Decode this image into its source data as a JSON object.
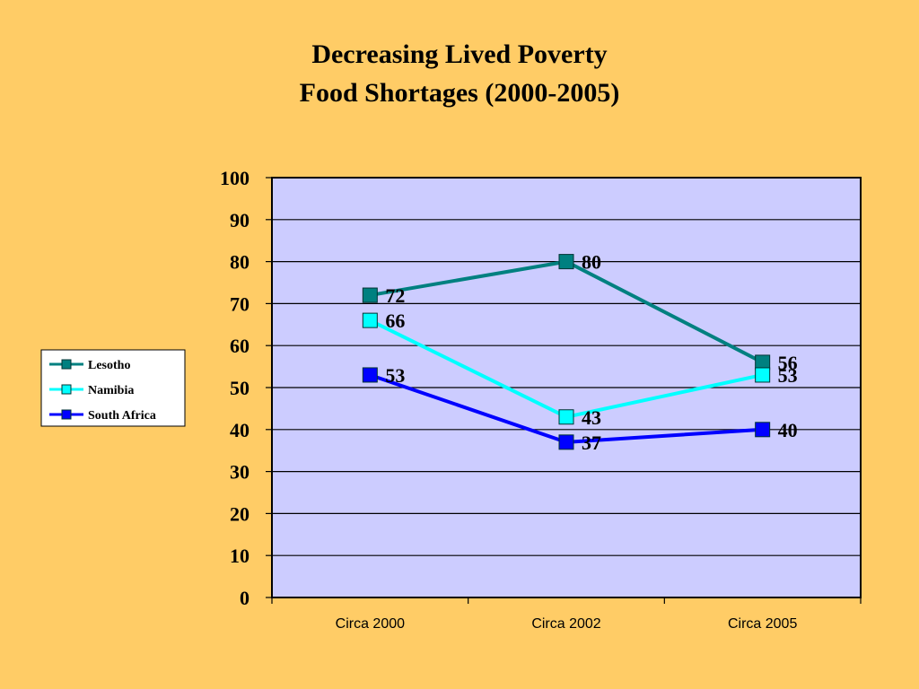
{
  "slide": {
    "background": "#FFCC66",
    "title_line1": "Decreasing Lived Poverty",
    "title_line2": "Food Shortages (2000-2005)"
  },
  "chart_data": {
    "type": "line",
    "title": "Decreasing Lived Poverty Food Shortages (2000-2005)",
    "categories": [
      "Circa 2000",
      "Circa 2002",
      "Circa 2005"
    ],
    "ylim": [
      0,
      100
    ],
    "yticks": [
      0,
      10,
      20,
      30,
      40,
      50,
      60,
      70,
      80,
      90,
      100
    ],
    "grid": true,
    "legend_position": "left",
    "plot_background": "#CCCCFF",
    "series": [
      {
        "name": "Lesotho",
        "values": [
          72,
          80,
          56
        ],
        "color": "#008080",
        "marker": "square"
      },
      {
        "name": "Namibia",
        "values": [
          66,
          43,
          53
        ],
        "color": "#00FFFF",
        "marker": "square"
      },
      {
        "name": "South Africa",
        "values": [
          53,
          37,
          40
        ],
        "color": "#0000FF",
        "marker": "square"
      }
    ]
  }
}
